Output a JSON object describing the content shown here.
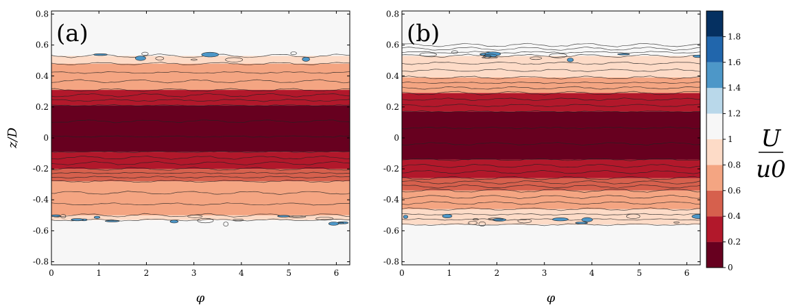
{
  "chart_data": [
    {
      "type": "heatmap",
      "panel_label": "(a)",
      "xlabel": "φ",
      "ylabel": "z/D",
      "xlim": [
        0,
        6.283
      ],
      "ylim": [
        -0.82,
        0.82
      ],
      "xticks": [
        "0",
        "1",
        "2",
        "3",
        "4",
        "5",
        "6"
      ],
      "yticks": [
        "-0.8",
        "-0.6",
        "-0.4",
        "-0.2",
        "0",
        "0.2",
        "0.4",
        "0.6",
        "0.8"
      ],
      "bands": [
        {
          "z0": -0.82,
          "z1": -0.53,
          "value": 1.1
        },
        {
          "z0": -0.53,
          "z1": -0.5,
          "value": 0.9
        },
        {
          "z0": -0.5,
          "z1": -0.28,
          "value": 0.7
        },
        {
          "z0": -0.28,
          "z1": -0.2,
          "value": 0.5
        },
        {
          "z0": -0.2,
          "z1": -0.09,
          "value": 0.3
        },
        {
          "z0": -0.09,
          "z1": 0.21,
          "value": 0.1
        },
        {
          "z0": 0.21,
          "z1": 0.31,
          "value": 0.3
        },
        {
          "z0": 0.31,
          "z1": 0.48,
          "value": 0.7
        },
        {
          "z0": 0.48,
          "z1": 0.53,
          "value": 0.9
        },
        {
          "z0": 0.53,
          "z1": 0.82,
          "value": 1.1
        }
      ]
    },
    {
      "type": "heatmap",
      "panel_label": "(b)",
      "xlabel": "φ",
      "ylabel": "",
      "xlim": [
        0,
        6.283
      ],
      "ylim": [
        -0.82,
        0.82
      ],
      "xticks": [
        "0",
        "1",
        "2",
        "3",
        "4",
        "5",
        "6"
      ],
      "yticks": [
        "-0.8",
        "-0.6",
        "-0.4",
        "-0.2",
        "0",
        "0.2",
        "0.4",
        "0.6",
        "0.8"
      ],
      "bands": [
        {
          "z0": -0.82,
          "z1": -0.56,
          "value": 1.1
        },
        {
          "z0": -0.56,
          "z1": -0.46,
          "value": 0.9
        },
        {
          "z0": -0.46,
          "z1": -0.34,
          "value": 0.7
        },
        {
          "z0": -0.34,
          "z1": -0.26,
          "value": 0.5
        },
        {
          "z0": -0.26,
          "z1": -0.14,
          "value": 0.3
        },
        {
          "z0": -0.14,
          "z1": 0.17,
          "value": 0.1
        },
        {
          "z0": 0.17,
          "z1": 0.29,
          "value": 0.3
        },
        {
          "z0": 0.29,
          "z1": 0.39,
          "value": 0.7
        },
        {
          "z0": 0.39,
          "z1": 0.53,
          "value": 0.9
        },
        {
          "z0": 0.53,
          "z1": 0.6,
          "value": 1.1
        },
        {
          "z0": 0.6,
          "z1": 0.82,
          "value": 1.1
        }
      ]
    }
  ],
  "colorbar": {
    "label_num": "U",
    "label_den": "u0",
    "ticks": [
      "0",
      "0.2",
      "0.4",
      "0.6",
      "0.8",
      "1",
      "1.2",
      "1.4",
      "1.6",
      "1.8"
    ],
    "levels": [
      0,
      0.2,
      0.4,
      0.6,
      0.8,
      1.0,
      1.2,
      1.4,
      1.6,
      1.8
    ],
    "colors": [
      "#67001f",
      "#b2182b",
      "#d6604d",
      "#f4a582",
      "#fddbc7",
      "#f7f7f7",
      "#b9d8ea",
      "#4d97c8",
      "#2166ac",
      "#053061"
    ]
  }
}
